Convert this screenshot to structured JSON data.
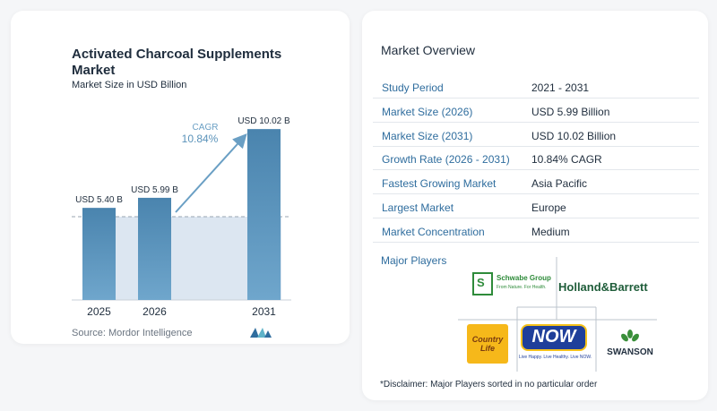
{
  "chart": {
    "title": "Activated Charcoal Supplements Market",
    "subtitle": "Market Size in USD Billion",
    "source": "Source:  Mordor Intelligence",
    "cagr_label": "CAGR",
    "cagr_value": "10.84%"
  },
  "chart_data": {
    "type": "bar",
    "categories": [
      "2025",
      "2026",
      "2031"
    ],
    "values": [
      5.4,
      5.99,
      10.02
    ],
    "value_labels": [
      "USD 5.40 B",
      "USD 5.99 B",
      "USD 10.02 B"
    ],
    "title": "Activated Charcoal Supplements Market",
    "subtitle": "Market Size in USD Billion",
    "xlabel": "",
    "ylabel": "",
    "ylim": [
      0,
      10.5
    ],
    "annotation": "CAGR 10.84%",
    "colors": {
      "bar": "#5b93ba",
      "bar_top": "#4a84ae",
      "shade": "#dce6f1",
      "arrow": "#6a9fc4"
    }
  },
  "overview": {
    "title": "Market Overview",
    "rows": [
      {
        "label": "Study Period",
        "value": "2021 - 2031"
      },
      {
        "label": "Market Size (2026)",
        "value": "USD 5.99 Billion"
      },
      {
        "label": "Market Size (2031)",
        "value": "USD 10.02 Billion"
      },
      {
        "label": "Growth Rate (2026 - 2031)",
        "value": "10.84% CAGR"
      },
      {
        "label": "Fastest Growing Market",
        "value": "Asia Pacific"
      },
      {
        "label": "Largest Market",
        "value": "Europe"
      },
      {
        "label": "Market Concentration",
        "value": "Medium"
      }
    ]
  },
  "players": {
    "title": "Major Players",
    "logos": [
      {
        "name": "schwabe-group-logo",
        "text": "Schwabe Group",
        "tagline": "From Nature. For Health.",
        "mark": "SCHWABE"
      },
      {
        "name": "holland-barrett-logo",
        "text": "Holland&Barrett"
      },
      {
        "name": "country-life-logo",
        "text": "Country Life"
      },
      {
        "name": "now-logo",
        "text": "NOW",
        "tagline": "Live Happy. Live Healthy. Live NOW."
      },
      {
        "name": "swanson-logo",
        "text": "SWANSON"
      }
    ]
  },
  "disclaimer": "*Disclaimer: Major Players sorted in no particular order"
}
